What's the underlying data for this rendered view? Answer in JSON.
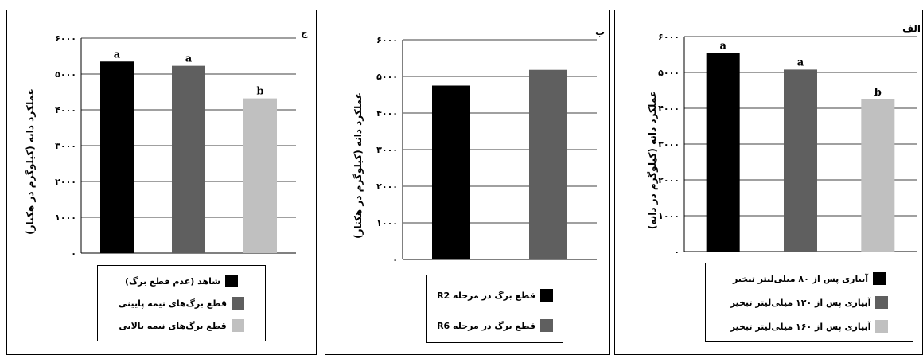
{
  "colors": {
    "black": "#000000",
    "dark_gray": "#5f5f5f",
    "light_gray": "#c0c0c0"
  },
  "chart_data": [
    {
      "id": "c",
      "panel_label": "ج",
      "type": "bar",
      "ylabel": "عملکرد دانه (کیلوگرم در هکتار)",
      "ylim": [
        0,
        6000
      ],
      "yticks": [
        "۰",
        "۱۰۰۰",
        "۲۰۰۰",
        "۳۰۰۰",
        "۴۰۰۰",
        "۵۰۰۰",
        "۶۰۰۰"
      ],
      "categories": [
        "شاهد (عدم قطع برگ)",
        "قطع برگ‌های نیمه پایینی",
        "قطع برگ‌های نیمه بالایی"
      ],
      "values": [
        5350,
        5230,
        4320
      ],
      "significance": [
        "a",
        "a",
        "b"
      ],
      "colors": [
        "#000000",
        "#5f5f5f",
        "#c0c0c0"
      ],
      "legend": [
        "شاهد (عدم قطع برگ)",
        "قطع برگ‌های نیمه پایینی",
        "قطع برگ‌های نیمه بالایی"
      ],
      "grid": true
    },
    {
      "id": "b",
      "panel_label": "ب",
      "type": "bar",
      "ylabel": "عملکرد دانه (کیلوگرم در هکتار)",
      "ylim": [
        0,
        6000
      ],
      "yticks": [
        "۰",
        "۱۰۰۰",
        "۲۰۰۰",
        "۳۰۰۰",
        "۴۰۰۰",
        "۵۰۰۰",
        "۶۰۰۰"
      ],
      "categories": [
        "قطع برگ در مرحله R2",
        "قطع برگ در مرحله R6"
      ],
      "values": [
        4750,
        5180
      ],
      "significance": [
        "",
        ""
      ],
      "colors": [
        "#000000",
        "#5f5f5f"
      ],
      "legend": [
        "قطع برگ در مرحله R2",
        "قطع برگ در مرحله R6"
      ],
      "grid": true
    },
    {
      "id": "a",
      "panel_label": "الف",
      "type": "bar",
      "ylabel": "عملکرد دانه (کیلوگرم در دانه)",
      "ylim": [
        0,
        6000
      ],
      "yticks": [
        "۰",
        "۱۰۰۰",
        "۲۰۰۰",
        "۳۰۰۰",
        "۴۰۰۰",
        "۵۰۰۰",
        "۶۰۰۰"
      ],
      "categories": [
        "آبیاری پس از ۸۰ میلی‌لیتر تبخیر",
        "آبیاری پس از ۱۲۰ میلی‌لیتر تبخیر",
        "آبیاری پس از ۱۶۰ میلی‌لیتر تبخیر"
      ],
      "values": [
        5550,
        5080,
        4250
      ],
      "significance": [
        "a",
        "a",
        "b"
      ],
      "colors": [
        "#000000",
        "#5f5f5f",
        "#c0c0c0"
      ],
      "legend": [
        "آبیاری پس از ۸۰ میلی‌لیتر تبخیر",
        "آبیاری پس از ۱۲۰ میلی‌لیتر تبخیر",
        "آبیاری پس از ۱۶۰ میلی‌لیتر تبخیر"
      ],
      "grid": true
    }
  ]
}
